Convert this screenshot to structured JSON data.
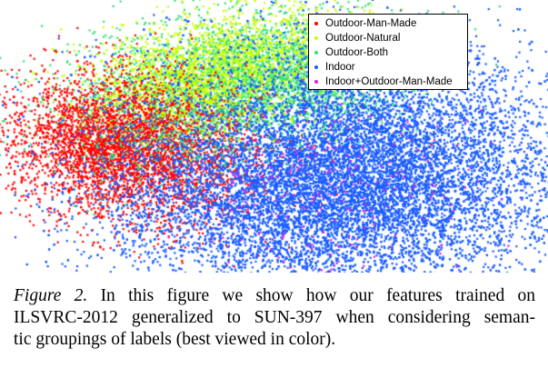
{
  "figure": {
    "legend": [
      {
        "label": "Outdoor-Man-Made",
        "color": "#ff0000"
      },
      {
        "label": "Outdoor-Natural",
        "color": "#ccff00"
      },
      {
        "label": "Outdoor-Both",
        "color": "#33e07a"
      },
      {
        "label": "Indoor",
        "color": "#1a5cff"
      },
      {
        "label": "Indoor+Outdoor-Man-Made",
        "color": "#e020e0"
      }
    ]
  },
  "caption": {
    "label": "Figure 2.",
    "line1": "In this figure we show how our features trained on",
    "line2": "ILSVRC-2012 generalized to SUN-397 when considering seman-",
    "line3": "tic groupings of labels (best viewed in color)."
  },
  "chart_data": {
    "type": "scatter",
    "title": "",
    "xlabel": "",
    "ylabel": "",
    "grid": false,
    "legend_position": "top-right",
    "series": [
      {
        "name": "Outdoor-Man-Made",
        "color": "#ff0000"
      },
      {
        "name": "Outdoor-Natural",
        "color": "#ccff00"
      },
      {
        "name": "Outdoor-Both",
        "color": "#33e07a"
      },
      {
        "name": "Indoor",
        "color": "#1a5cff"
      },
      {
        "name": "Indoor+Outdoor-Man-Made",
        "color": "#e020e0"
      }
    ]
  }
}
